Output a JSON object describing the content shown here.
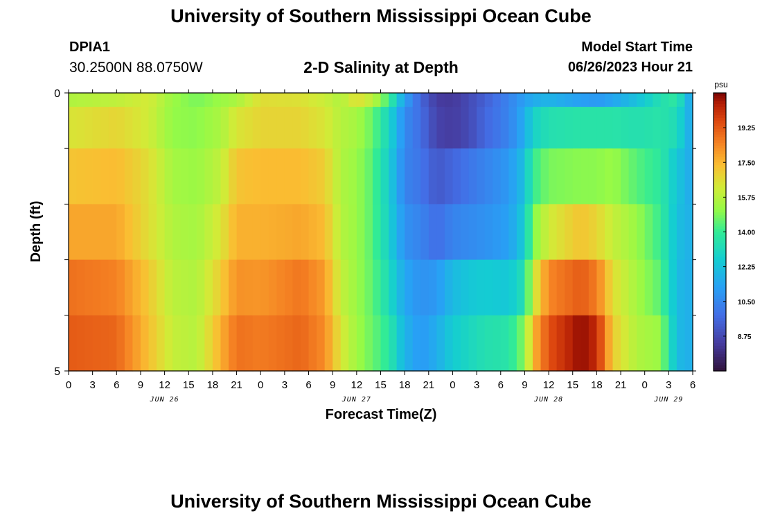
{
  "header": {
    "title": "University of Southern Mississippi Ocean Cube",
    "station": "DPIA1",
    "coordinates": "30.2500N  88.0750W",
    "subtitle": "2-D Salinity at Depth",
    "model_start_label": "Model Start Time",
    "model_start_value": "06/26/2023 Hour 21"
  },
  "footer": {
    "title": "University of Southern Mississippi Ocean Cube"
  },
  "chart_data": {
    "type": "heatmap",
    "title": "2-D Salinity at Depth",
    "xlabel": "Forecast Time(Z)",
    "ylabel": "Depth (ft)",
    "x_range": [
      0,
      78
    ],
    "x_ticks": [
      0,
      3,
      6,
      9,
      12,
      15,
      18,
      21,
      24,
      27,
      30,
      33,
      36,
      39,
      42,
      45,
      48,
      51,
      54,
      57,
      60,
      63,
      66,
      69,
      72,
      75,
      78
    ],
    "x_tick_labels": [
      "0",
      "3",
      "6",
      "9",
      "12",
      "15",
      "18",
      "21",
      "0",
      "3",
      "6",
      "9",
      "12",
      "15",
      "18",
      "21",
      "0",
      "3",
      "6",
      "9",
      "12",
      "15",
      "18",
      "21",
      "0",
      "3",
      "6"
    ],
    "date_labels": [
      {
        "hour": 12,
        "text": "JUN 26"
      },
      {
        "hour": 36,
        "text": "JUN 27"
      },
      {
        "hour": 60,
        "text": "JUN 28"
      },
      {
        "hour": 75,
        "text": "JUN 29"
      }
    ],
    "y_range": [
      0,
      5
    ],
    "y_ticks": [
      0,
      1,
      2,
      3,
      4,
      5
    ],
    "y_tick_labels": [
      "0",
      "",
      "",
      "",
      "",
      "5"
    ],
    "depth_levels": [
      0,
      0.5,
      1.5,
      2.5,
      3.5,
      4.5
    ],
    "colorbar": {
      "unit": "psu",
      "range": [
        7,
        21
      ],
      "ticks": [
        8.75,
        10.5,
        12.25,
        14.0,
        15.75,
        17.5,
        19.25
      ],
      "tick_labels": [
        "8.75",
        "10.50",
        "12.25",
        "14.00",
        "15.75",
        "17.50",
        "19.25"
      ]
    },
    "salinity_keyframes": [
      {
        "hour": 0,
        "values": [
          15.6,
          16.4,
          17.2,
          17.8,
          18.8,
          19.2
        ]
      },
      {
        "hour": 6,
        "values": [
          15.9,
          16.8,
          17.4,
          17.8,
          18.5,
          19.0
        ]
      },
      {
        "hour": 10,
        "values": [
          16.3,
          16.2,
          16.6,
          16.6,
          17.1,
          17.3
        ]
      },
      {
        "hour": 13,
        "values": [
          15.2,
          15.1,
          15.4,
          15.6,
          15.8,
          16.0
        ]
      },
      {
        "hour": 16,
        "values": [
          14.8,
          15.0,
          15.2,
          15.4,
          15.6,
          15.7
        ]
      },
      {
        "hour": 19,
        "values": [
          15.2,
          15.5,
          15.9,
          16.4,
          17.0,
          17.6
        ]
      },
      {
        "hour": 21,
        "values": [
          15.5,
          16.4,
          17.2,
          17.6,
          18.2,
          18.8
        ]
      },
      {
        "hour": 24,
        "values": [
          16.6,
          16.8,
          17.4,
          17.6,
          18.1,
          18.6
        ]
      },
      {
        "hour": 29,
        "values": [
          16.5,
          16.8,
          17.4,
          17.8,
          18.7,
          19.0
        ]
      },
      {
        "hour": 32,
        "values": [
          16.1,
          16.4,
          17.0,
          17.4,
          18.0,
          18.3
        ]
      },
      {
        "hour": 34,
        "values": [
          15.6,
          15.7,
          15.6,
          15.7,
          16.0,
          16.4
        ]
      },
      {
        "hour": 36,
        "values": [
          16.6,
          15.4,
          15.2,
          15.2,
          15.2,
          15.3
        ]
      },
      {
        "hour": 38,
        "values": [
          15.8,
          14.6,
          14.4,
          14.4,
          14.5,
          14.6
        ]
      },
      {
        "hour": 40,
        "values": [
          14.2,
          13.0,
          12.7,
          12.8,
          13.2,
          13.8
        ]
      },
      {
        "hour": 42,
        "values": [
          11.2,
          10.6,
          10.4,
          10.8,
          11.4,
          11.8
        ]
      },
      {
        "hour": 44,
        "values": [
          9.6,
          9.8,
          10.0,
          10.4,
          10.8,
          11.0
        ]
      },
      {
        "hour": 46,
        "values": [
          8.4,
          8.6,
          9.2,
          9.8,
          11.0,
          11.6
        ]
      },
      {
        "hour": 48,
        "values": [
          8.3,
          8.4,
          9.6,
          10.4,
          12.0,
          12.6
        ]
      },
      {
        "hour": 50,
        "values": [
          8.8,
          8.8,
          10.0,
          10.6,
          12.4,
          13.0
        ]
      },
      {
        "hour": 52,
        "values": [
          9.4,
          9.6,
          10.4,
          10.8,
          12.6,
          13.4
        ]
      },
      {
        "hour": 55,
        "values": [
          10.4,
          10.4,
          11.0,
          11.2,
          12.4,
          13.6
        ]
      },
      {
        "hour": 57,
        "values": [
          11.2,
          11.6,
          12.2,
          12.6,
          13.4,
          15.0
        ]
      },
      {
        "hour": 58,
        "values": [
          11.6,
          12.8,
          14.0,
          14.8,
          16.0,
          17.4
        ]
      },
      {
        "hour": 60,
        "values": [
          11.8,
          13.4,
          14.8,
          16.2,
          18.4,
          19.4
        ]
      },
      {
        "hour": 64,
        "values": [
          11.2,
          13.6,
          15.0,
          17.2,
          19.2,
          20.8
        ]
      },
      {
        "hour": 66,
        "values": [
          11.0,
          13.6,
          15.0,
          16.8,
          18.6,
          20.2
        ]
      },
      {
        "hour": 68,
        "values": [
          11.4,
          13.6,
          15.2,
          16.0,
          16.6,
          17.0
        ]
      },
      {
        "hour": 71,
        "values": [
          12.2,
          13.4,
          14.4,
          15.2,
          15.4,
          15.6
        ]
      },
      {
        "hour": 74,
        "values": [
          13.4,
          13.6,
          13.8,
          14.0,
          14.4,
          15.2
        ]
      },
      {
        "hour": 76,
        "values": [
          13.8,
          13.2,
          12.4,
          12.2,
          12.0,
          12.0
        ]
      },
      {
        "hour": 78,
        "values": [
          11.0,
          11.2,
          11.4,
          11.6,
          11.6,
          11.6
        ]
      }
    ]
  }
}
